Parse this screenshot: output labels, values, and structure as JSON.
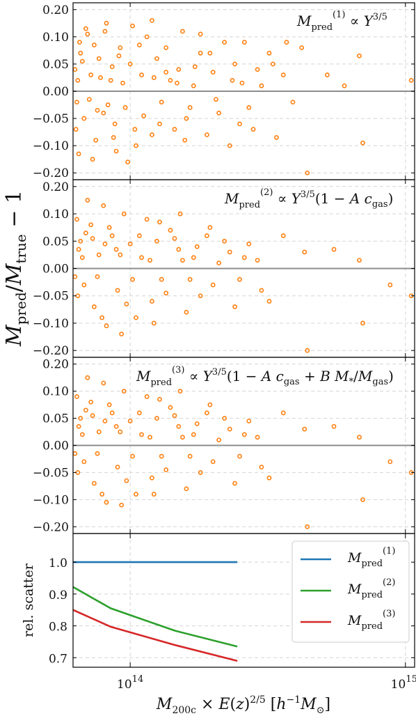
{
  "figure": {
    "ylabel": "M_pred / M_true − 1",
    "xlabel": "M_200c × E(z)^2/5 [h⁻¹M_⊙]"
  },
  "chart_data": [
    {
      "type": "scatter",
      "panel": "top",
      "annotation": "M_pred^(1) ∝ Y^3/5",
      "xscale": "log",
      "xlim": [
        62000000000000.0,
        1080000000000000.0
      ],
      "ylim": [
        -0.225,
        0.225
      ],
      "yscale": "symlog-like (linear near zero)",
      "yticks": [
        -0.2,
        -0.1,
        -0.05,
        0.0,
        0.05,
        0.1,
        0.2
      ],
      "ytick_labels": [
        "−0.20",
        "−0.10",
        "−0.05",
        "0.00",
        "0.05",
        "0.10",
        "0.20"
      ],
      "reference_line": 0.0,
      "grid": true,
      "marker_color": "#ff7f0e",
      "points": [
        [
          440000000000000.0,
          -0.2
        ],
        [
          700000000000000.0,
          -0.095
        ],
        [
          340000000000000.0,
          -0.085
        ],
        [
          370000000000000.0,
          0.09
        ],
        [
          420000000000000.0,
          0.08
        ],
        [
          520000000000000.0,
          0.03
        ],
        [
          600000000000000.0,
          0.01
        ],
        [
          680000000000000.0,
          0.065
        ],
        [
          1050000000000000.0,
          0.02
        ],
        [
          320000000000000.0,
          0.07
        ],
        [
          260000000000000.0,
          0.09
        ],
        [
          250000000000000.0,
          -0.06
        ],
        [
          270000000000000.0,
          -0.03
        ],
        [
          300000000000000.0,
          0.01
        ],
        [
          280000000000000.0,
          -0.07
        ],
        [
          240000000000000.0,
          0.05
        ],
        [
          220000000000000.0,
          0.09
        ],
        [
          210000000000000.0,
          -0.04
        ],
        [
          200000000000000.0,
          0.035
        ],
        [
          190000000000000.0,
          -0.08
        ],
        [
          180000000000000.0,
          0.07
        ],
        [
          170000000000000.0,
          0.01
        ],
        [
          160000000000000.0,
          -0.05
        ],
        [
          155000000000000.0,
          0.12
        ],
        [
          150000000000000.0,
          0.04
        ],
        [
          145000000000000.0,
          -0.07
        ],
        [
          140000000000000.0,
          0.02
        ],
        [
          135000000000000.0,
          0.08
        ],
        [
          130000000000000.0,
          -0.02
        ],
        [
          125000000000000.0,
          0.06
        ],
        [
          120000000000000.0,
          -0.08
        ],
        [
          115000000000000.0,
          0.1
        ],
        [
          110000000000000.0,
          0.03
        ],
        [
          105000000000000.0,
          -0.1
        ],
        [
          100000000000000.0,
          0.05
        ],
        [
          96000000000000.0,
          -0.03
        ],
        [
          92000000000000.0,
          0.08
        ],
        [
          88000000000000.0,
          -0.06
        ],
        [
          85000000000000.0,
          0.02
        ],
        [
          82000000000000.0,
          0.15
        ],
        [
          80000000000000.0,
          -0.04
        ],
        [
          77000000000000.0,
          0.06
        ],
        [
          75000000000000.0,
          -0.09
        ],
        [
          72000000000000.0,
          0.03
        ],
        [
          70000000000000.0,
          0.11
        ],
        [
          68000000000000.0,
          -0.05
        ],
        [
          66000000000000.0,
          0.07
        ],
        [
          64000000000000.0,
          -0.02
        ],
        [
          63000000000000.0,
          0.04
        ],
        [
          65000000000000.0,
          -0.13
        ],
        [
          73000000000000.0,
          -0.15
        ],
        [
          89000000000000.0,
          -0.12
        ],
        [
          98000000000000.0,
          -0.16
        ],
        [
          69000000000000.0,
          0.13
        ],
        [
          81000000000000.0,
          0.12
        ],
        [
          102000000000000.0,
          0.14
        ],
        [
          120000000000000.0,
          0.16
        ],
        [
          180000000000000.0,
          0.11
        ],
        [
          230000000000000.0,
          -0.1
        ],
        [
          330000000000000.0,
          0.05
        ],
        [
          360000000000000.0,
          0.03
        ],
        [
          390000000000000.0,
          -0.02
        ],
        [
          290000000000000.0,
          0.04
        ],
        [
          255000000000000.0,
          0.015
        ],
        [
          195000000000000.0,
          0.07
        ],
        [
          165000000000000.0,
          -0.03
        ],
        [
          135000000000000.0,
          0.035
        ],
        [
          112000000000000.0,
          -0.045
        ],
        [
          94000000000000.0,
          0.015
        ],
        [
          86000000000000.0,
          0.045
        ],
        [
          78000000000000.0,
          0.025
        ],
        [
          71000000000000.0,
          -0.015
        ],
        [
          67000000000000.0,
          0.055
        ],
        [
          63500000000000.0,
          -0.07
        ],
        [
          64500000000000.0,
          0.02
        ],
        [
          74000000000000.0,
          0.085
        ],
        [
          83000000000000.0,
          -0.025
        ],
        [
          91000000000000.0,
          0.065
        ],
        [
          108000000000000.0,
          0.085
        ],
        [
          128000000000000.0,
          -0.06
        ],
        [
          148000000000000.0,
          0.015
        ],
        [
          172000000000000.0,
          0.045
        ],
        [
          205000000000000.0,
          -0.015
        ],
        [
          235000000000000.0,
          0.02
        ],
        [
          158000000000000.0,
          -0.09
        ],
        [
          122000000000000.0,
          0.025
        ],
        [
          104000000000000.0,
          -0.07
        ],
        [
          87000000000000.0,
          -0.085
        ],
        [
          76000000000000.0,
          -0.035
        ],
        [
          65500000000000.0,
          0.09
        ]
      ]
    },
    {
      "type": "scatter",
      "panel": "middle",
      "annotation": "M_pred^(2) ∝ Y^3/5(1 − A c_gas)",
      "xscale": "log",
      "xlim": [
        62000000000000.0,
        1080000000000000.0
      ],
      "ylim": [
        -0.225,
        0.225
      ],
      "yticks": [
        -0.2,
        -0.1,
        -0.05,
        0.0,
        0.05,
        0.1,
        0.2
      ],
      "ytick_labels": [
        "−0.20",
        "−0.10",
        "−0.05",
        "0.00",
        "0.05",
        "0.10",
        "0.20"
      ],
      "reference_line": 0.0,
      "grid": true,
      "marker_color": "#ff7f0e",
      "points": [
        [
          440000000000000.0,
          -0.2
        ],
        [
          700000000000000.0,
          -0.1
        ],
        [
          360000000000000.0,
          0.06
        ],
        [
          430000000000000.0,
          0.03
        ],
        [
          550000000000000.0,
          0.035
        ],
        [
          680000000000000.0,
          0.015
        ],
        [
          880000000000000.0,
          -0.03
        ],
        [
          1050000000000000.0,
          -0.05
        ],
        [
          320000000000000.0,
          -0.06
        ],
        [
          260000000000000.0,
          0.02
        ],
        [
          240000000000000.0,
          -0.07
        ],
        [
          220000000000000.0,
          0.05
        ],
        [
          200000000000000.0,
          -0.03
        ],
        [
          190000000000000.0,
          0.06
        ],
        [
          180000000000000.0,
          -0.05
        ],
        [
          170000000000000.0,
          0.02
        ],
        [
          160000000000000.0,
          -0.08
        ],
        [
          150000000000000.0,
          0.035
        ],
        [
          140000000000000.0,
          0.07
        ],
        [
          130000000000000.0,
          -0.02
        ],
        [
          125000000000000.0,
          0.05
        ],
        [
          120000000000000.0,
          -0.06
        ],
        [
          115000000000000.0,
          0.09
        ],
        [
          110000000000000.0,
          0.02
        ],
        [
          105000000000000.0,
          -0.09
        ],
        [
          100000000000000.0,
          0.045
        ],
        [
          95000000000000.0,
          0.1
        ],
        [
          90000000000000.0,
          -0.04
        ],
        [
          86000000000000.0,
          0.06
        ],
        [
          82000000000000.0,
          -0.11
        ],
        [
          80000000000000.0,
          0.13
        ],
        [
          77000000000000.0,
          0.025
        ],
        [
          74000000000000.0,
          -0.07
        ],
        [
          72000000000000.0,
          0.08
        ],
        [
          70000000000000.0,
          0.15
        ],
        [
          68000000000000.0,
          -0.03
        ],
        [
          66000000000000.0,
          0.05
        ],
        [
          64000000000000.0,
          0.09
        ],
        [
          63000000000000.0,
          -0.015
        ],
        [
          65000000000000.0,
          0.035
        ],
        [
          73000000000000.0,
          0.055
        ],
        [
          84000000000000.0,
          0.075
        ],
        [
          92000000000000.0,
          0.025
        ],
        [
          102000000000000.0,
          -0.02
        ],
        [
          118000000000000.0,
          0.015
        ],
        [
          135000000000000.0,
          -0.045
        ],
        [
          155000000000000.0,
          0.015
        ],
        [
          175000000000000.0,
          0.04
        ],
        [
          210000000000000.0,
          0.01
        ],
        [
          250000000000000.0,
          -0.02
        ],
        [
          290000000000000.0,
          0.015
        ],
        [
          300000000000000.0,
          -0.04
        ],
        [
          230000000000000.0,
          0.03
        ],
        [
          165000000000000.0,
          -0.02
        ],
        [
          145000000000000.0,
          0.055
        ],
        [
          128000000000000.0,
          0.085
        ],
        [
          108000000000000.0,
          0.06
        ],
        [
          97000000000000.0,
          -0.065
        ],
        [
          89000000000000.0,
          0.035
        ],
        [
          81000000000000.0,
          0.045
        ],
        [
          76000000000000.0,
          -0.015
        ],
        [
          69000000000000.0,
          0.065
        ],
        [
          64500000000000.0,
          -0.05
        ],
        [
          67000000000000.0,
          0.02
        ],
        [
          79000000000000.0,
          -0.09
        ],
        [
          93000000000000.0,
          -0.14
        ],
        [
          122000000000000.0,
          -0.1
        ],
        [
          152000000000000.0,
          0.1
        ],
        [
          195000000000000.0,
          0.075
        ],
        [
          270000000000000.0,
          0.045
        ]
      ]
    },
    {
      "type": "scatter",
      "panel": "lower",
      "annotation": "M_pred^(3) ∝ Y^3/5(1 − A c_gas + B M_*/M_gas)",
      "xscale": "log",
      "xlim": [
        62000000000000.0,
        1080000000000000.0
      ],
      "ylim": [
        -0.225,
        0.225
      ],
      "yticks": [
        -0.2,
        -0.1,
        -0.05,
        0.0,
        0.05,
        0.1,
        0.2
      ],
      "ytick_labels": [
        "−0.20",
        "−0.10",
        "−0.05",
        "0.00",
        "0.05",
        "0.10",
        "0.20"
      ],
      "reference_line": 0.0,
      "grid": true,
      "marker_color": "#ff7f0e",
      "points": [
        [
          440000000000000.0,
          -0.2
        ],
        [
          700000000000000.0,
          -0.1
        ],
        [
          360000000000000.0,
          0.06
        ],
        [
          430000000000000.0,
          0.03
        ],
        [
          550000000000000.0,
          0.035
        ],
        [
          680000000000000.0,
          0.015
        ],
        [
          880000000000000.0,
          -0.03
        ],
        [
          1050000000000000.0,
          -0.05
        ],
        [
          320000000000000.0,
          -0.06
        ],
        [
          260000000000000.0,
          0.02
        ],
        [
          240000000000000.0,
          -0.07
        ],
        [
          220000000000000.0,
          0.05
        ],
        [
          200000000000000.0,
          -0.03
        ],
        [
          190000000000000.0,
          0.06
        ],
        [
          180000000000000.0,
          -0.05
        ],
        [
          170000000000000.0,
          0.02
        ],
        [
          160000000000000.0,
          -0.08
        ],
        [
          150000000000000.0,
          0.035
        ],
        [
          140000000000000.0,
          0.07
        ],
        [
          130000000000000.0,
          -0.02
        ],
        [
          125000000000000.0,
          0.05
        ],
        [
          120000000000000.0,
          -0.06
        ],
        [
          115000000000000.0,
          0.09
        ],
        [
          110000000000000.0,
          0.02
        ],
        [
          105000000000000.0,
          -0.09
        ],
        [
          100000000000000.0,
          0.045
        ],
        [
          95000000000000.0,
          0.1
        ],
        [
          90000000000000.0,
          -0.04
        ],
        [
          86000000000000.0,
          0.06
        ],
        [
          82000000000000.0,
          -0.11
        ],
        [
          80000000000000.0,
          0.13
        ],
        [
          77000000000000.0,
          0.025
        ],
        [
          74000000000000.0,
          -0.07
        ],
        [
          72000000000000.0,
          0.08
        ],
        [
          70000000000000.0,
          0.15
        ],
        [
          68000000000000.0,
          -0.03
        ],
        [
          66000000000000.0,
          0.05
        ],
        [
          64000000000000.0,
          0.09
        ],
        [
          63000000000000.0,
          -0.015
        ],
        [
          65000000000000.0,
          0.035
        ],
        [
          73000000000000.0,
          0.055
        ],
        [
          84000000000000.0,
          0.075
        ],
        [
          92000000000000.0,
          0.025
        ],
        [
          102000000000000.0,
          -0.02
        ],
        [
          118000000000000.0,
          0.015
        ],
        [
          135000000000000.0,
          -0.045
        ],
        [
          155000000000000.0,
          0.015
        ],
        [
          175000000000000.0,
          0.04
        ],
        [
          210000000000000.0,
          0.01
        ],
        [
          250000000000000.0,
          -0.02
        ],
        [
          290000000000000.0,
          0.015
        ],
        [
          300000000000000.0,
          -0.04
        ],
        [
          230000000000000.0,
          0.03
        ],
        [
          165000000000000.0,
          -0.02
        ],
        [
          145000000000000.0,
          0.055
        ],
        [
          128000000000000.0,
          0.085
        ],
        [
          108000000000000.0,
          0.06
        ],
        [
          97000000000000.0,
          -0.065
        ],
        [
          89000000000000.0,
          0.035
        ],
        [
          81000000000000.0,
          0.045
        ],
        [
          76000000000000.0,
          -0.015
        ],
        [
          69000000000000.0,
          0.065
        ],
        [
          64500000000000.0,
          -0.05
        ],
        [
          67000000000000.0,
          0.02
        ],
        [
          79000000000000.0,
          -0.09
        ],
        [
          93000000000000.0,
          -0.12
        ],
        [
          122000000000000.0,
          -0.09
        ],
        [
          152000000000000.0,
          0.1
        ],
        [
          195000000000000.0,
          0.075
        ],
        [
          270000000000000.0,
          0.045
        ]
      ]
    },
    {
      "type": "line",
      "panel": "bottom",
      "ylabel": "rel. scatter",
      "xlabel": "M_200c × E(z)^2/5 [h⁻¹M_⊙]",
      "xscale": "log",
      "xlim": [
        62000000000000.0,
        1080000000000000.0
      ],
      "ylim": [
        0.67,
        1.09
      ],
      "yticks": [
        0.7,
        0.8,
        0.9,
        1.0
      ],
      "ytick_labels": [
        "0.7",
        "0.8",
        "0.9",
        "1.0"
      ],
      "xtick_labels": [
        "10^14",
        "10^15"
      ],
      "xticks": [
        100000000000000.0,
        1000000000000000.0
      ],
      "grid": true,
      "legend_position": "top-right",
      "series": [
        {
          "name": "M_pred^(1)",
          "color": "#1f77b4",
          "x": [
            62000000000000.0,
            85000000000000.0,
            145000000000000.0,
            245000000000000.0
          ],
          "y": [
            1.0,
            1.0,
            1.0,
            1.0
          ]
        },
        {
          "name": "M_pred^(2)",
          "color": "#2ca02c",
          "x": [
            62000000000000.0,
            85000000000000.0,
            145000000000000.0,
            245000000000000.0
          ],
          "y": [
            0.922,
            0.855,
            0.785,
            0.735
          ]
        },
        {
          "name": "M_pred^(3)",
          "color": "#d62728",
          "x": [
            62000000000000.0,
            85000000000000.0,
            145000000000000.0,
            245000000000000.0
          ],
          "y": [
            0.85,
            0.797,
            0.74,
            0.69
          ]
        }
      ]
    }
  ]
}
